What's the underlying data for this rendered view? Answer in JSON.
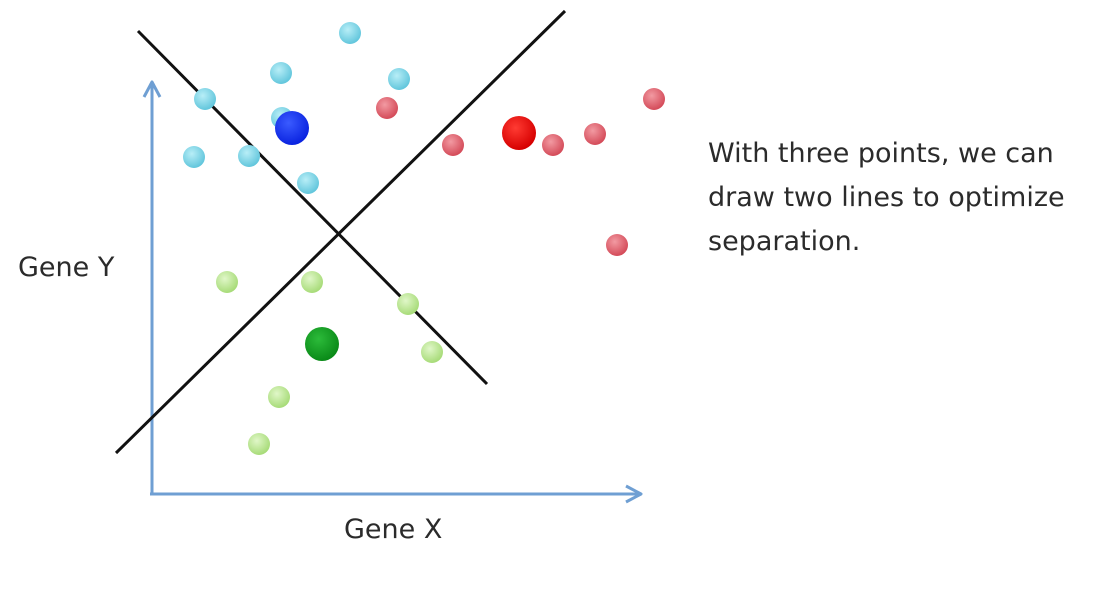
{
  "labels": {
    "y_axis": "Gene Y",
    "x_axis": "Gene X"
  },
  "caption_lines": [
    "With three points, we can",
    "draw two lines to optimize",
    "separation."
  ],
  "colors": {
    "axis": "#6f9fd3",
    "divider": "#111111",
    "cyan_cluster": "#7fd6e8",
    "red_cluster": "#e06a75",
    "green_cluster": "#bfe898",
    "blue_center": "#1232ff",
    "red_center": "#ee0f10",
    "green_center": "#10a020"
  }
}
